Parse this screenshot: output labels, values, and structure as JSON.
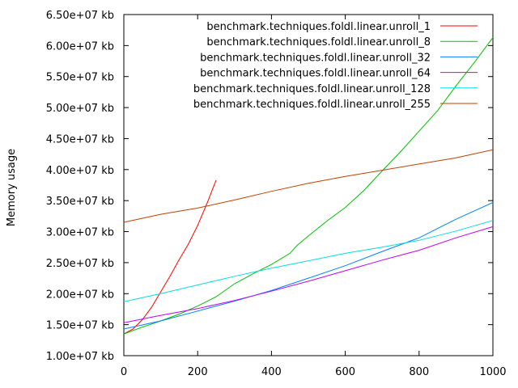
{
  "chart_data": {
    "type": "line",
    "title": "",
    "xlabel": "",
    "ylabel": "Memory usage",
    "xlim": [
      0,
      1000
    ],
    "ylim": [
      10000000,
      65000000
    ],
    "x_ticks": [
      0,
      200,
      400,
      600,
      800,
      1000
    ],
    "x_tick_labels": [
      "0",
      "200",
      "400",
      "600",
      "800",
      "1000"
    ],
    "y_ticks": [
      10000000,
      15000000,
      20000000,
      25000000,
      30000000,
      35000000,
      40000000,
      45000000,
      50000000,
      55000000,
      60000000,
      65000000
    ],
    "y_tick_labels": [
      "1.00e+07 kb",
      "1.50e+07 kb",
      "2.00e+07 kb",
      "2.50e+07 kb",
      "3.00e+07 kb",
      "3.50e+07 kb",
      "4.00e+07 kb",
      "4.50e+07 kb",
      "5.00e+07 kb",
      "5.50e+07 kb",
      "6.00e+07 kb",
      "6.50e+07 kb"
    ],
    "grid": false,
    "legend_position": "top-right",
    "series": [
      {
        "name": "benchmark.techniques.foldl.linear.unroll_1",
        "color": "#ff0000",
        "x": [
          0,
          25,
          50,
          75,
          100,
          125,
          150,
          175,
          200,
          225,
          250
        ],
        "y": [
          13500000,
          14300000,
          15800000,
          17800000,
          20300000,
          22800000,
          25500000,
          28000000,
          31000000,
          34500000,
          38300000
        ]
      },
      {
        "name": "benchmark.techniques.foldl.linear.unroll_8",
        "color": "#00c000",
        "x": [
          0,
          50,
          100,
          150,
          200,
          250,
          300,
          350,
          400,
          450,
          470,
          500,
          550,
          600,
          650,
          700,
          750,
          800,
          850,
          900,
          950,
          1000
        ],
        "y": [
          13500000,
          14600000,
          15600000,
          16700000,
          18000000,
          19500000,
          21600000,
          23200000,
          24700000,
          26500000,
          27800000,
          29300000,
          31700000,
          33900000,
          36600000,
          39800000,
          42900000,
          46200000,
          49500000,
          53500000,
          57300000,
          61300000
        ]
      },
      {
        "name": "benchmark.techniques.foldl.linear.unroll_32",
        "color": "#0080ff",
        "x": [
          0,
          100,
          200,
          300,
          400,
          500,
          600,
          700,
          800,
          900,
          1000
        ],
        "y": [
          14300000,
          15600000,
          17200000,
          18800000,
          20500000,
          22500000,
          24500000,
          26800000,
          29000000,
          32000000,
          34700000
        ]
      },
      {
        "name": "benchmark.techniques.foldl.linear.unroll_64",
        "color": "#c000ff",
        "x": [
          0,
          100,
          200,
          300,
          400,
          500,
          600,
          700,
          800,
          900,
          1000
        ],
        "y": [
          15300000,
          16500000,
          17600000,
          18900000,
          20400000,
          22000000,
          23700000,
          25400000,
          27000000,
          29000000,
          30800000
        ]
      },
      {
        "name": "benchmark.techniques.foldl.linear.unroll_128",
        "color": "#00e0e0",
        "x": [
          0,
          100,
          200,
          300,
          400,
          500,
          600,
          700,
          800,
          900,
          1000
        ],
        "y": [
          18700000,
          20000000,
          21400000,
          22800000,
          24100000,
          25300000,
          26500000,
          27500000,
          28600000,
          30100000,
          31800000
        ]
      },
      {
        "name": "benchmark.techniques.foldl.linear.unroll_255",
        "color": "#c04000",
        "x": [
          0,
          100,
          200,
          300,
          400,
          500,
          600,
          700,
          800,
          900,
          1000
        ],
        "y": [
          31500000,
          32800000,
          33800000,
          35100000,
          36500000,
          37800000,
          38900000,
          39900000,
          40900000,
          41900000,
          43200000
        ]
      }
    ]
  }
}
